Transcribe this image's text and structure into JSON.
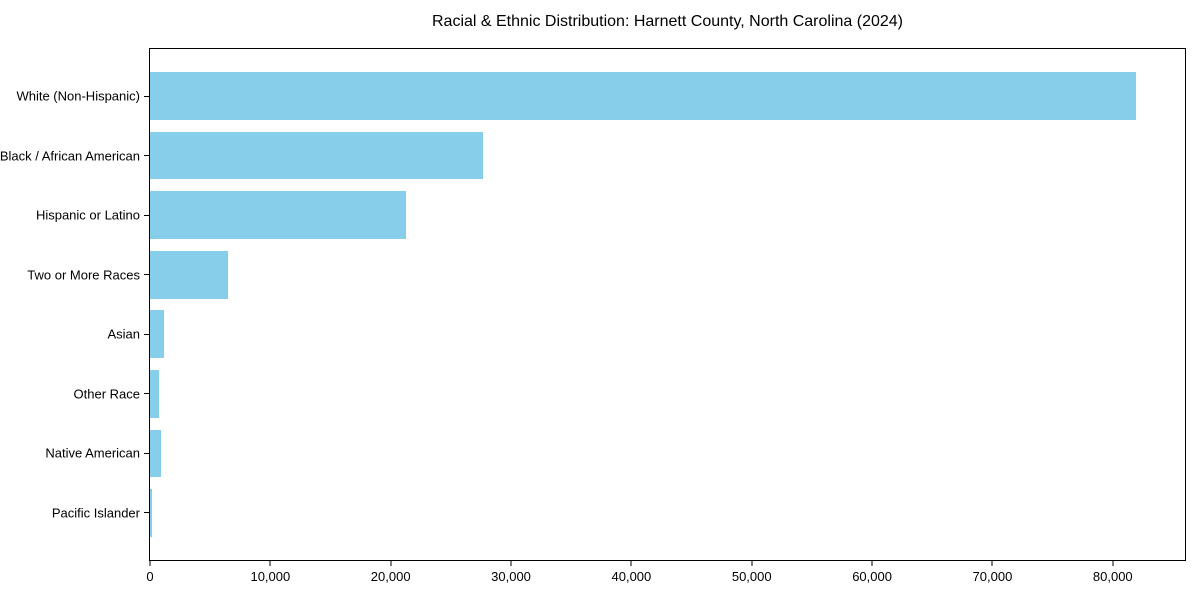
{
  "title": "Racial & Ethnic Distribution: Harnett County, North Carolina (2024)",
  "colors": {
    "bar": "#87CEEB",
    "axis": "#000000",
    "background": "#FFFFFF",
    "text": "#000000"
  },
  "chart_data": {
    "type": "bar",
    "orientation": "horizontal",
    "title": "Racial & Ethnic Distribution: Harnett County, North Carolina (2024)",
    "categories": [
      "White (Non-Hispanic)",
      "Black / African American",
      "Hispanic or Latino",
      "Two or More Races",
      "Asian",
      "Other Race",
      "Native American",
      "Pacific Islander"
    ],
    "values": [
      81900,
      27700,
      21300,
      6450,
      1200,
      750,
      900,
      180
    ],
    "xlabel": "",
    "ylabel": "",
    "xlim": [
      0,
      86000
    ],
    "x_ticks": [
      0,
      10000,
      20000,
      30000,
      40000,
      50000,
      60000,
      70000,
      80000
    ],
    "x_tick_labels": [
      "0",
      "10,000",
      "20,000",
      "30,000",
      "40,000",
      "50,000",
      "60,000",
      "70,000",
      "80,000"
    ],
    "bar_color": "#87CEEB",
    "grid": false,
    "legend": null
  }
}
